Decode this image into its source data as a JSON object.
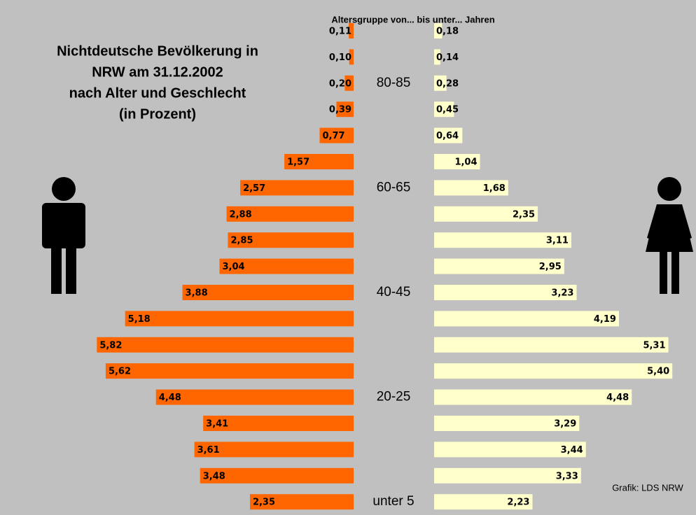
{
  "chart_data": {
    "type": "pyramid",
    "title": [
      "Nichtdeutsche Bevölkerung in",
      "NRW am 31.12.2002",
      "nach Alter und Geschlecht",
      "(in Prozent)"
    ],
    "subtitle": "Altersgruppe von... bis unter... Jahren",
    "source": "Grafik: LDS NRW",
    "categories": [
      null,
      null,
      "80-85",
      null,
      null,
      null,
      "60-65",
      null,
      null,
      null,
      "40-45",
      null,
      null,
      null,
      "20-25",
      null,
      null,
      null,
      "unter 5"
    ],
    "series": [
      {
        "color": "#ff6600",
        "values": [
          0.11,
          0.1,
          0.2,
          0.39,
          0.77,
          1.57,
          2.57,
          2.88,
          2.85,
          3.04,
          3.88,
          5.18,
          5.82,
          5.62,
          4.48,
          3.41,
          3.61,
          3.48,
          2.35
        ],
        "value_labels": [
          "0,11",
          "0,10",
          "0,20",
          "0,39",
          "0,77",
          "1,57",
          "2,57",
          "2,88",
          "2,85",
          "3,04",
          "3,88",
          "5,18",
          "5,82",
          "5,62",
          "4,48",
          "3,41",
          "3,61",
          "3,48",
          "2,35"
        ]
      },
      {
        "color": "#ffffcc",
        "values": [
          0.18,
          0.14,
          0.28,
          0.45,
          0.64,
          1.04,
          1.68,
          2.35,
          3.11,
          2.95,
          3.23,
          4.19,
          5.31,
          5.4,
          4.48,
          3.29,
          3.44,
          3.33,
          2.23
        ],
        "value_labels": [
          "0,18",
          "0,14",
          "0,28",
          "0,45",
          "0,64",
          "1,04",
          "1,68",
          "2,35",
          "3,11",
          "2,95",
          "3,23",
          "4,19",
          "5,31",
          "5,40",
          "4,48",
          "3,29",
          "3,44",
          "3,33",
          "2,23"
        ]
      }
    ]
  }
}
